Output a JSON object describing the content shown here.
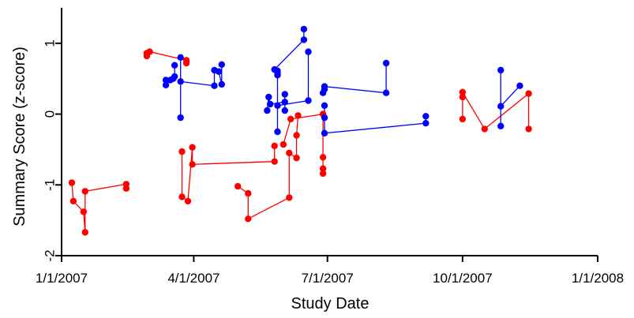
{
  "chart_data": {
    "type": "scatter",
    "title": "",
    "xlabel": "Study Date",
    "ylabel": "Summary Score (z-score)",
    "x_ticks": [
      "1/1/2007",
      "4/1/2007",
      "7/1/2007",
      "10/1/2007",
      "1/1/2008"
    ],
    "xlim": [
      "2007-01-01",
      "2008-01-01"
    ],
    "ylim": [
      -2,
      1.5
    ],
    "y_ticks": [
      -2,
      -1,
      0,
      1
    ],
    "grid": false,
    "legend": "none",
    "series": [
      {
        "color": "#ff0000",
        "marker": "circle",
        "subjects": [
          [
            [
              "2007-01-08",
              -0.97
            ],
            [
              "2007-01-09",
              -1.23
            ],
            [
              "2007-01-16",
              -1.38
            ],
            [
              "2007-01-17",
              -1.67
            ],
            [
              "2007-01-17",
              -1.09
            ],
            [
              "2007-02-14",
              -0.99
            ],
            [
              "2007-02-14",
              -1.05
            ]
          ],
          [
            [
              "2007-02-28",
              0.82
            ],
            [
              "2007-02-28",
              0.86
            ],
            [
              "2007-03-02",
              0.88
            ],
            [
              "2007-03-27",
              0.76
            ],
            [
              "2007-03-27",
              0.72
            ]
          ],
          [
            [
              "2007-03-24",
              -0.53
            ],
            [
              "2007-03-24",
              -1.17
            ],
            [
              "2007-03-28",
              -1.23
            ],
            [
              "2007-03-31",
              -0.47
            ],
            [
              "2007-03-31",
              -0.71
            ],
            [
              "2007-05-26",
              -0.67
            ],
            [
              "2007-05-26",
              -0.45
            ]
          ],
          [
            [
              "2007-05-01",
              -1.02
            ],
            [
              "2007-05-08",
              -1.12
            ],
            [
              "2007-05-08",
              -1.48
            ],
            [
              "2007-06-05",
              -1.18
            ],
            [
              "2007-06-05",
              -0.55
            ],
            [
              "2007-06-10",
              -0.62
            ],
            [
              "2007-06-10",
              -0.3
            ],
            [
              "2007-06-11",
              -0.02
            ]
          ],
          [
            [
              "2007-06-01",
              -0.43
            ],
            [
              "2007-06-06",
              -0.07
            ],
            [
              "2007-06-28",
              0.0
            ],
            [
              "2007-06-28",
              -0.61
            ],
            [
              "2007-06-28",
              -0.77
            ],
            [
              "2007-06-28",
              -0.84
            ]
          ],
          [
            [
              "2007-10-01",
              -0.07
            ],
            [
              "2007-10-01",
              0.24
            ],
            [
              "2007-10-01",
              0.31
            ],
            [
              "2007-10-16",
              -0.21
            ],
            [
              "2007-11-15",
              0.29
            ],
            [
              "2007-11-15",
              -0.21
            ]
          ]
        ]
      },
      {
        "color": "#0000ff",
        "marker": "circle",
        "subjects": [
          [
            [
              "2007-03-13",
              0.48
            ],
            [
              "2007-03-13",
              0.41
            ],
            [
              "2007-03-16",
              0.48
            ],
            [
              "2007-03-18",
              0.5
            ],
            [
              "2007-03-19",
              0.53
            ],
            [
              "2007-03-19",
              0.69
            ]
          ],
          [
            [
              "2007-03-23",
              0.8
            ],
            [
              "2007-03-23",
              -0.05
            ],
            [
              "2007-03-23",
              0.46
            ],
            [
              "2007-04-15",
              0.4
            ],
            [
              "2007-04-15",
              0.62
            ],
            [
              "2007-04-18",
              0.6
            ],
            [
              "2007-04-20",
              0.42
            ],
            [
              "2007-04-20",
              0.7
            ]
          ],
          [
            [
              "2007-05-21",
              0.05
            ],
            [
              "2007-05-22",
              0.24
            ],
            [
              "2007-05-23",
              0.14
            ],
            [
              "2007-06-02",
              0.17
            ],
            [
              "2007-06-02",
              0.05
            ],
            [
              "2007-06-02",
              0.28
            ]
          ],
          [
            [
              "2007-06-15",
              1.2
            ],
            [
              "2007-06-15",
              1.05
            ],
            [
              "2007-05-26",
              0.63
            ],
            [
              "2007-05-28",
              0.55
            ],
            [
              "2007-05-28",
              0.58
            ],
            [
              "2007-05-28",
              0.61
            ],
            [
              "2007-05-28",
              -0.25
            ]
          ],
          [
            [
              "2007-06-18",
              0.88
            ],
            [
              "2007-06-18",
              0.19
            ],
            [
              "2007-05-28",
              0.12
            ]
          ],
          [
            [
              "2007-06-28",
              0.3
            ],
            [
              "2007-06-29",
              0.35
            ],
            [
              "2007-06-29",
              0.39
            ],
            [
              "2007-08-10",
              0.3
            ],
            [
              "2007-08-10",
              0.72
            ]
          ],
          [
            [
              "2007-06-29",
              0.12
            ],
            [
              "2007-06-29",
              -0.05
            ],
            [
              "2007-06-29",
              -0.27
            ],
            [
              "2007-09-06",
              -0.13
            ],
            [
              "2007-09-06",
              -0.03
            ]
          ],
          [
            [
              "2007-10-27",
              -0.17
            ],
            [
              "2007-10-27",
              0.62
            ],
            [
              "2007-10-27",
              0.11
            ],
            [
              "2007-11-09",
              0.4
            ]
          ]
        ]
      }
    ]
  }
}
